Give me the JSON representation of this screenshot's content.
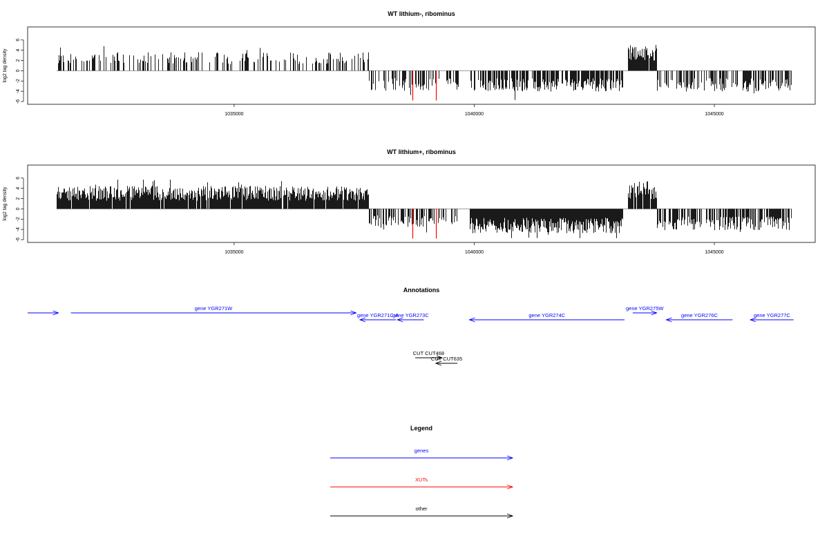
{
  "colors": {
    "genes": "#0000ff",
    "xuts": "#ff0000",
    "other": "#000000",
    "bars": "#000000"
  },
  "chart_data": [
    {
      "type": "bar",
      "title": "WT lithium-, ribominus",
      "ylabel": "log2 tag density",
      "xlim": [
        1030700,
        1047100
      ],
      "ylim": [
        -6,
        8
      ],
      "xticks": [
        "1035000",
        "1040000",
        "1045000"
      ],
      "yticks": [
        "6",
        "4",
        "2",
        "0",
        "-2",
        "-4",
        "-6"
      ],
      "grid": false,
      "regions": [
        {
          "x": [
            1031300,
            1037800
          ],
          "sign": 1,
          "amp": 2.6,
          "density": 0.35
        },
        {
          "x": [
            1037800,
            1039700
          ],
          "sign": -1,
          "amp": 2.8,
          "density": 0.45
        },
        {
          "x": [
            1039900,
            1043100
          ],
          "sign": -1,
          "amp": 2.9,
          "density": 0.7
        },
        {
          "x": [
            1043200,
            1043800
          ],
          "sign": 1,
          "amp": 3.6,
          "density": 0.85
        },
        {
          "x": [
            1043800,
            1046600
          ],
          "sign": -1,
          "amp": 2.9,
          "density": 0.6
        }
      ],
      "xut_marks": [
        1038720,
        1039210
      ],
      "xut_depth": -5.8
    },
    {
      "type": "bar",
      "title": "WT lithium+, ribominus",
      "ylabel": "log2 tag density",
      "xlim": [
        1030700,
        1047100
      ],
      "ylim": [
        -6,
        8
      ],
      "xticks": [
        "1035000",
        "1040000",
        "1045000"
      ],
      "yticks": [
        "6",
        "4",
        "2",
        "0",
        "-2",
        "-4",
        "-6"
      ],
      "grid": false,
      "regions": [
        {
          "x": [
            1031300,
            1037800
          ],
          "sign": 1,
          "amp": 3.2,
          "density": 0.95
        },
        {
          "x": [
            1037800,
            1039700
          ],
          "sign": -1,
          "amp": 2.5,
          "density": 0.5
        },
        {
          "x": [
            1039900,
            1043100
          ],
          "sign": -1,
          "amp": 3.4,
          "density": 1.0
        },
        {
          "x": [
            1043200,
            1043800
          ],
          "sign": 1,
          "amp": 3.8,
          "density": 0.9
        },
        {
          "x": [
            1043800,
            1046600
          ],
          "sign": -1,
          "amp": 3.0,
          "density": 0.7
        }
      ],
      "xut_marks": [
        1038720,
        1039210
      ],
      "xut_depth": -5.8
    }
  ],
  "annotations": {
    "title": "Annotations",
    "features": [
      {
        "label": "",
        "start": 1030700,
        "end": 1031340,
        "strand": "+",
        "kind": "gene",
        "row": 0
      },
      {
        "label": "gene YGR271W",
        "start": 1031600,
        "end": 1037540,
        "strand": "+",
        "kind": "gene",
        "row": 0
      },
      {
        "label": "gene YGR271C-A",
        "start": 1037620,
        "end": 1038370,
        "strand": "-",
        "kind": "gene",
        "row": 0
      },
      {
        "label": "gene YGR273C",
        "start": 1038400,
        "end": 1038950,
        "strand": "-",
        "kind": "gene",
        "row": 0
      },
      {
        "label": "gene YGR274C",
        "start": 1039900,
        "end": 1043130,
        "strand": "-",
        "kind": "gene",
        "row": 1
      },
      {
        "label": "gene YGR275W",
        "start": 1043300,
        "end": 1043800,
        "strand": "+",
        "kind": "gene",
        "row": -1
      },
      {
        "label": "gene YGR276C",
        "start": 1044000,
        "end": 1045380,
        "strand": "-",
        "kind": "gene",
        "row": 0
      },
      {
        "label": "gene YGR277C",
        "start": 1045750,
        "end": 1046650,
        "strand": "-",
        "kind": "gene",
        "row": 0
      },
      {
        "label": "CUT CUT468",
        "start": 1038770,
        "end": 1039330,
        "strand": "+",
        "kind": "other",
        "row": 2
      },
      {
        "label": "CUT CUT635",
        "start": 1039200,
        "end": 1039650,
        "strand": "-",
        "kind": "other",
        "row": 3
      }
    ]
  },
  "legend": {
    "title": "Legend",
    "items": [
      {
        "label": "genes",
        "kind": "genes"
      },
      {
        "label": "XUTs",
        "kind": "xuts"
      },
      {
        "label": "other",
        "kind": "other"
      }
    ]
  }
}
